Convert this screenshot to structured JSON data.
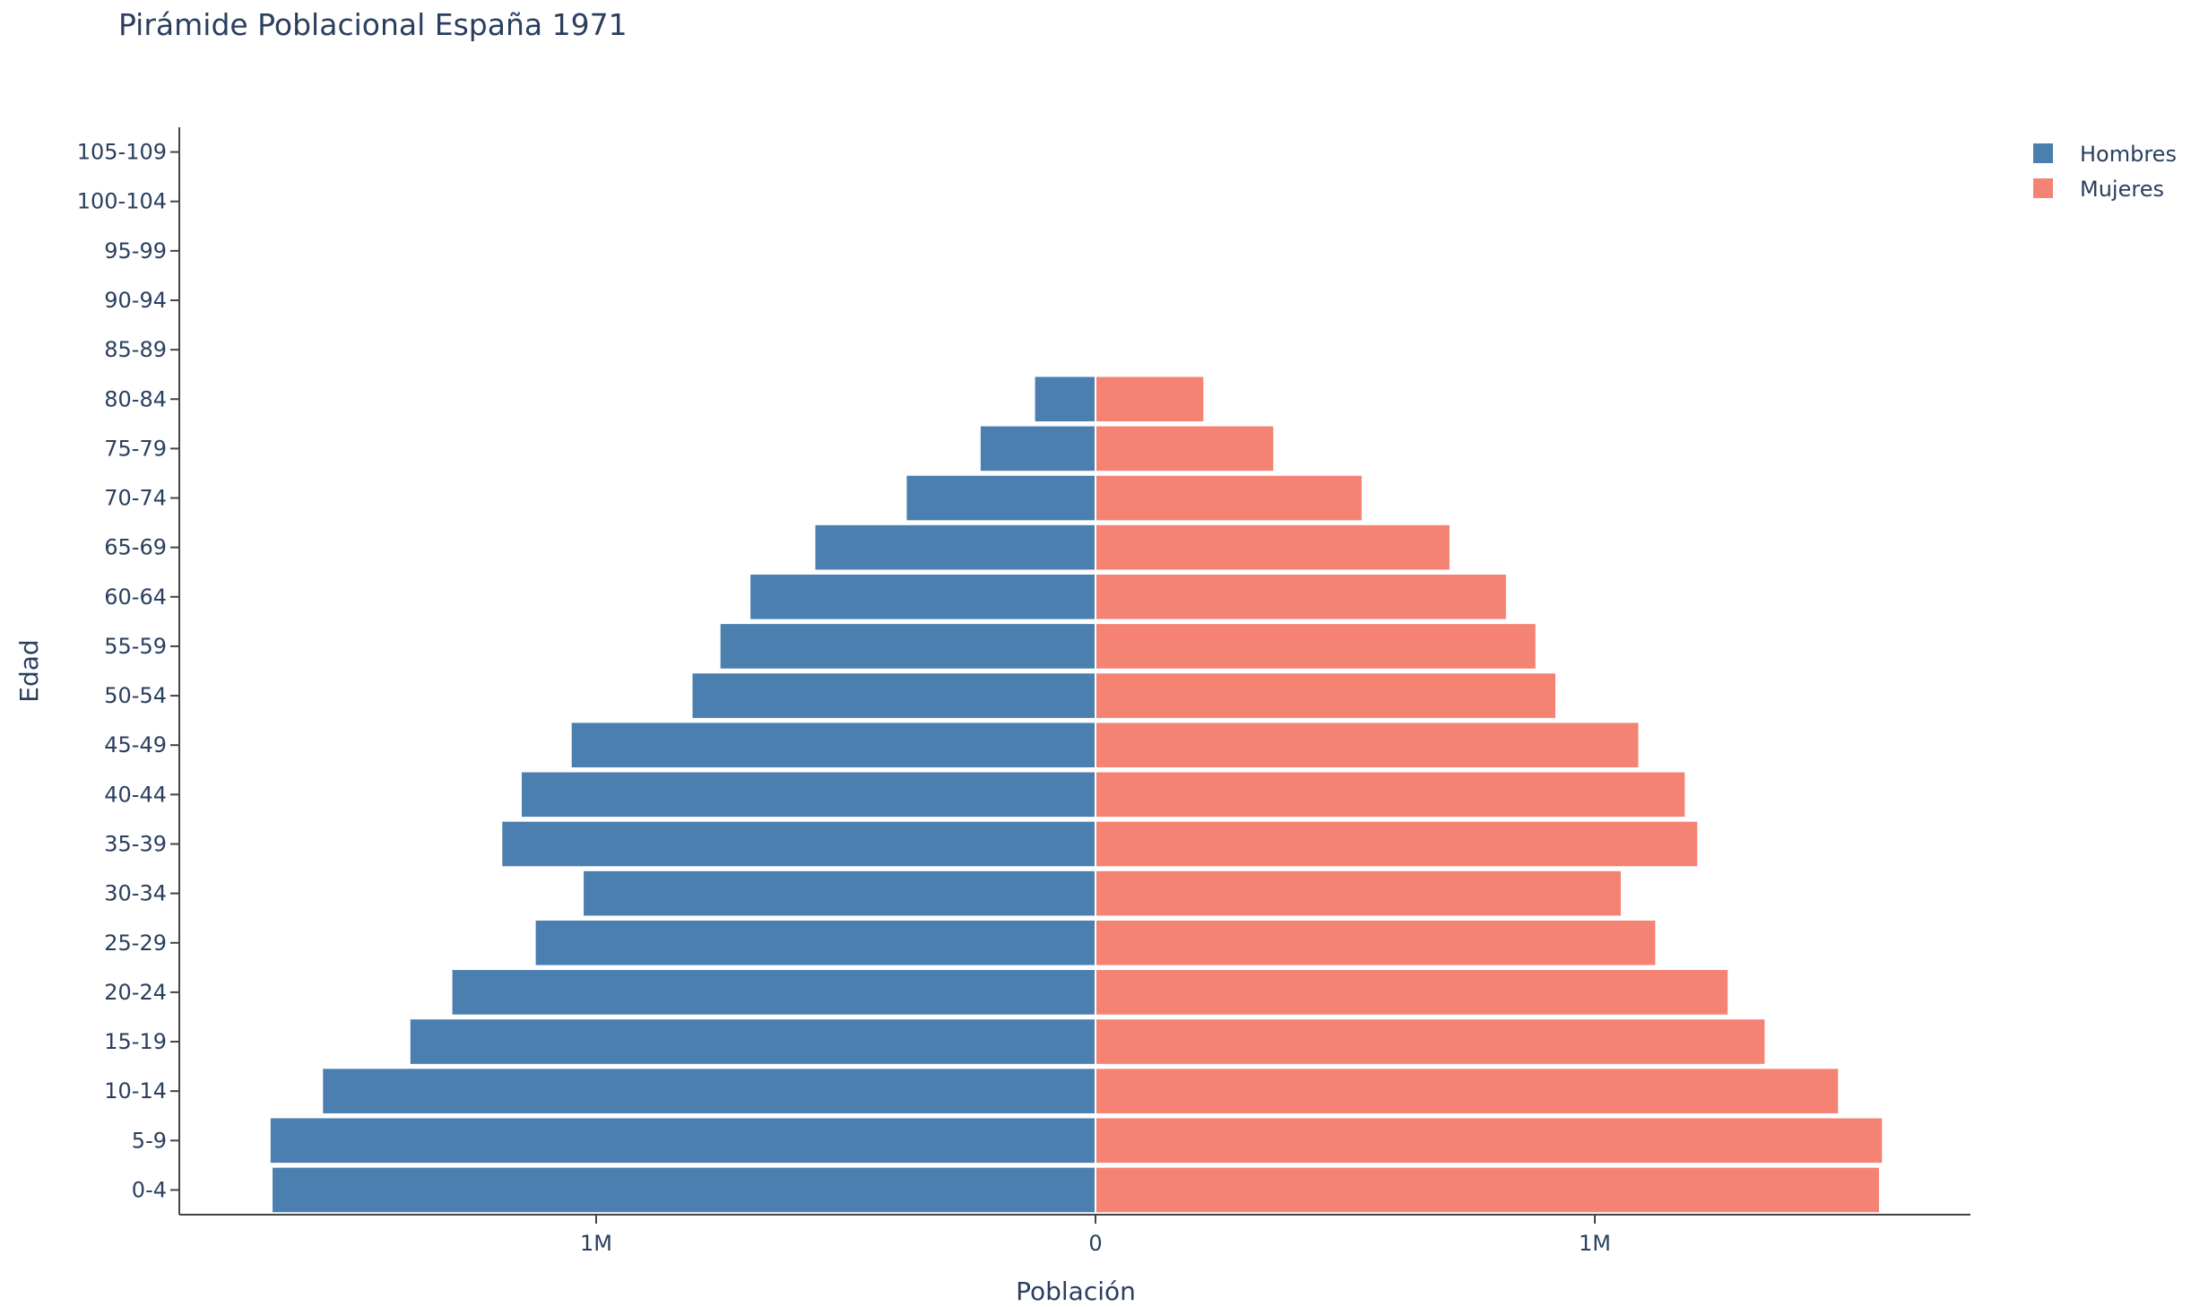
{
  "chart_data": {
    "type": "bar",
    "orientation": "horizontal",
    "title": "Pirámide Poblacional España 1971",
    "xlabel": "Población",
    "ylabel": "Edad",
    "categories": [
      "0-4",
      "5-9",
      "10-14",
      "15-19",
      "20-24",
      "25-29",
      "30-34",
      "35-39",
      "40-44",
      "45-49",
      "50-54",
      "55-59",
      "60-64",
      "65-69",
      "70-74",
      "75-79",
      "80-84",
      "85-89",
      "90-94",
      "95-99",
      "100-104",
      "105-109"
    ],
    "series": [
      {
        "name": "Hombres",
        "color": "#4a7fb0",
        "values": [
          -1648000,
          -1652000,
          -1547000,
          -1372000,
          -1288000,
          -1121000,
          -1025000,
          -1188000,
          -1149000,
          -1049000,
          -807000,
          -751000,
          -691000,
          -561000,
          -378000,
          -230000,
          -121000,
          0,
          0,
          0,
          0,
          0
        ]
      },
      {
        "name": "Mujeres",
        "color": "#f48374",
        "values": [
          1569000,
          1575000,
          1487000,
          1340000,
          1266000,
          1121000,
          1052000,
          1205000,
          1180000,
          1087000,
          921000,
          881000,
          822000,
          709000,
          533000,
          356000,
          216000,
          0,
          0,
          0,
          0,
          0
        ]
      }
    ],
    "xlim": [
      -1830000,
      1758000
    ],
    "xticks": [
      {
        "value": -1000000,
        "label": "1M"
      },
      {
        "value": 0,
        "label": "0"
      },
      {
        "value": 1000000,
        "label": "1M"
      }
    ],
    "grid": false,
    "legend_position": "top-right"
  }
}
